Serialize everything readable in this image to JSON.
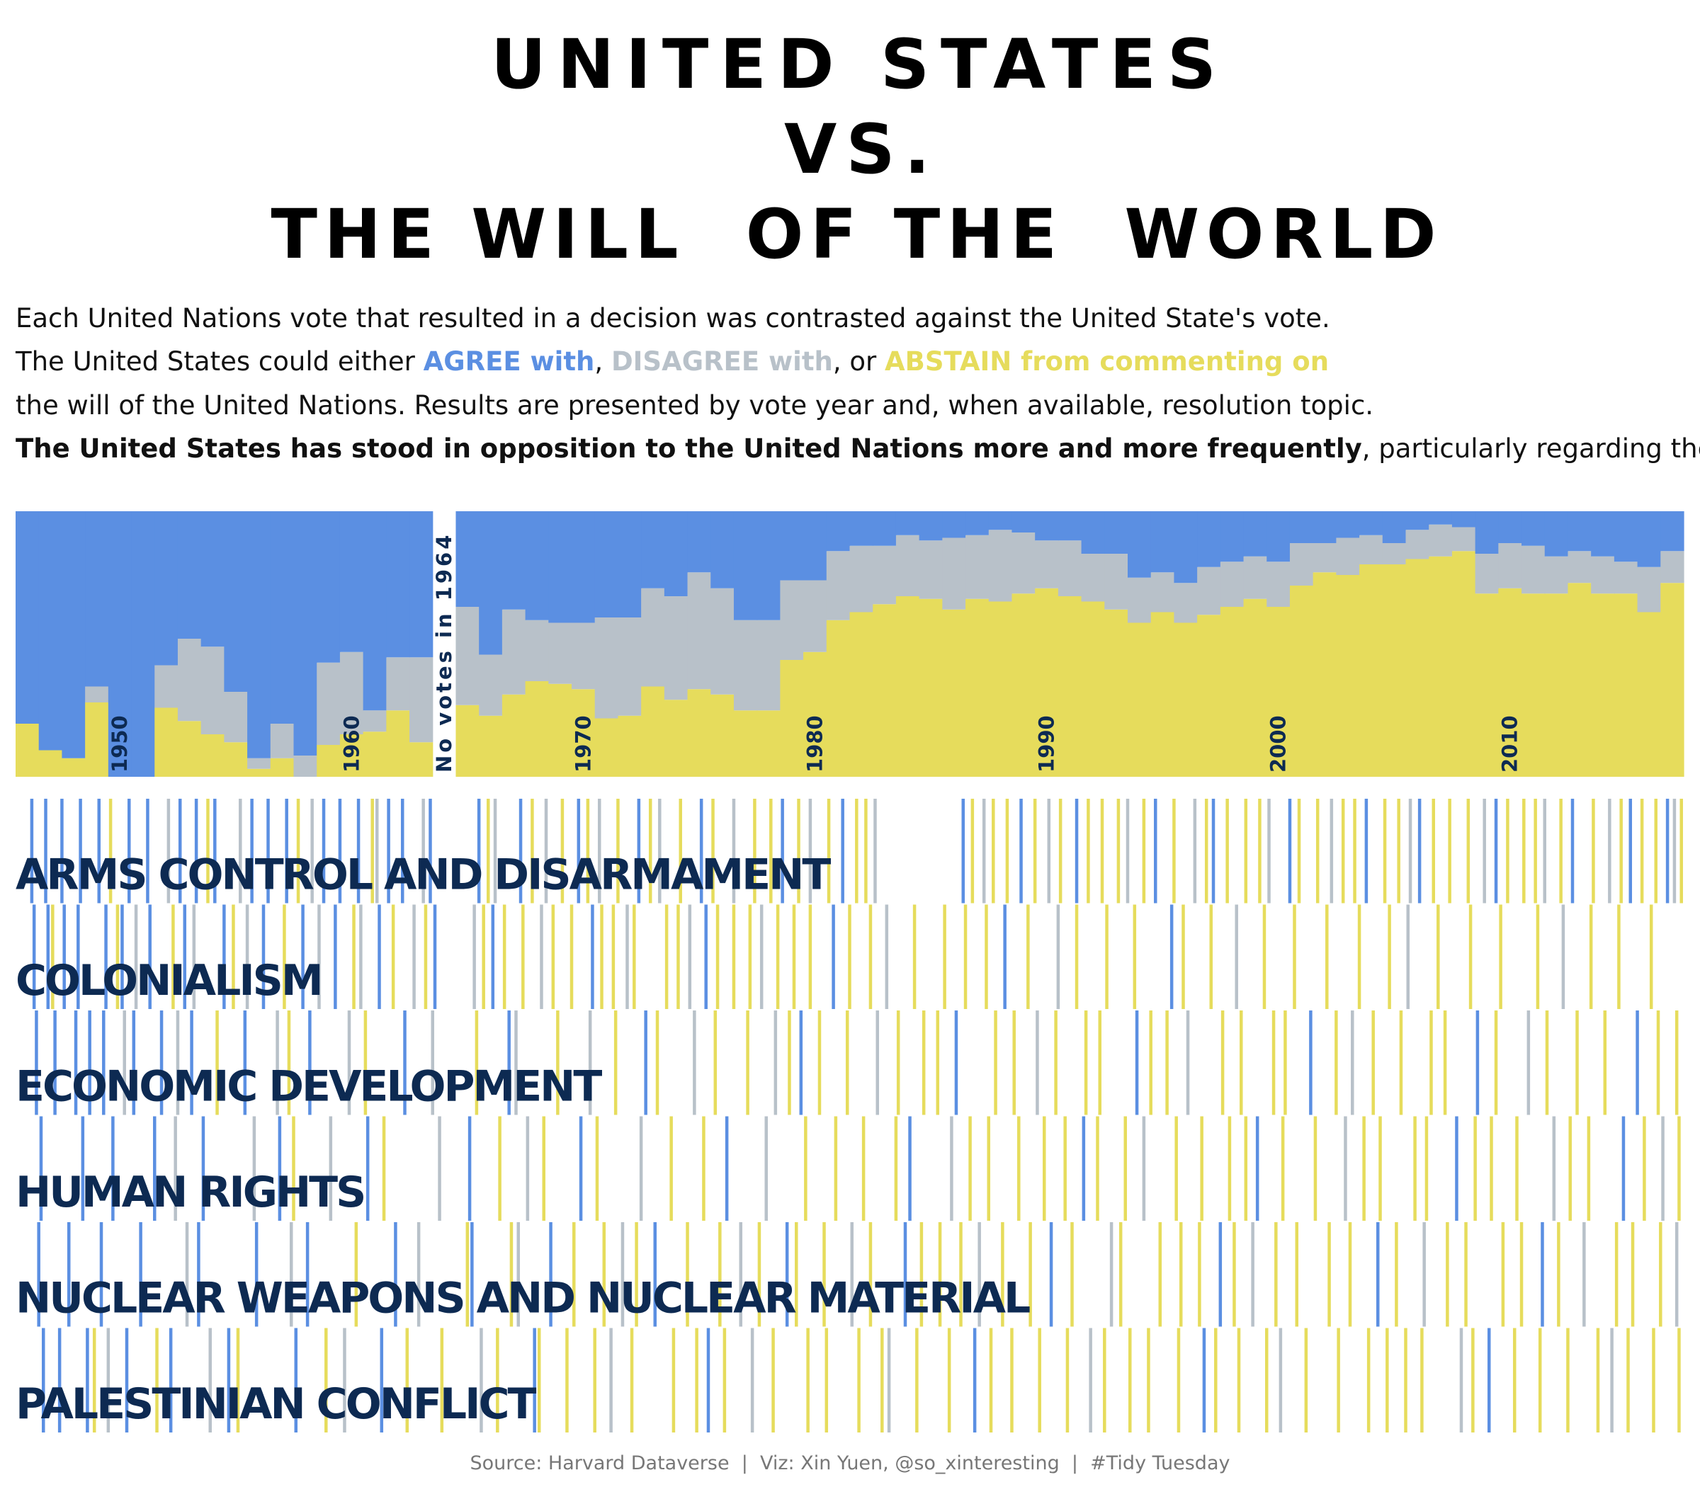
{
  "chart_data": {
    "type": "area",
    "title": [
      "UNITED STATES",
      "VS.",
      "THE WILL  OF THE  WORLD"
    ],
    "description": {
      "line1": "Each United Nations vote that resulted in a decision was contrasted against the United State's vote.",
      "line2_parts": [
        "The United States could either ",
        ", ",
        ", or "
      ],
      "line3": "the will of the United Nations. Results are presented by vote year and, when available, resolution topic.",
      "line4_bold": "The United States has stood in opposition to the United Nations more and more frequently",
      "line4_rest": ", particularly regarding the P"
    },
    "annotation": {
      "x": 1964,
      "text": "No votes in 1964"
    },
    "x": [
      1946,
      1947,
      1948,
      1949,
      1950,
      1951,
      1952,
      1953,
      1954,
      1955,
      1956,
      1957,
      1958,
      1959,
      1960,
      1961,
      1962,
      1963,
      1964,
      1965,
      1966,
      1967,
      1968,
      1969,
      1970,
      1971,
      1972,
      1973,
      1974,
      1975,
      1976,
      1977,
      1978,
      1979,
      1980,
      1981,
      1982,
      1983,
      1984,
      1985,
      1986,
      1987,
      1988,
      1989,
      1990,
      1991,
      1992,
      1993,
      1994,
      1995,
      1996,
      1997,
      1998,
      1999,
      2000,
      2001,
      2002,
      2003,
      2004,
      2005,
      2006,
      2007,
      2008,
      2009,
      2010,
      2011,
      2012,
      2013,
      2014,
      2015,
      2016,
      2017
    ],
    "xlim": [
      1945.5,
      2017.5
    ],
    "xticks": [
      1950,
      1960,
      1970,
      1980,
      1990,
      2000,
      2010
    ],
    "ylim": [
      0,
      100
    ],
    "series": [
      {
        "name": "AGREE with",
        "color": "#5b8fe2",
        "values": [
          80,
          90,
          93,
          66,
          100,
          100,
          58,
          48,
          51,
          68,
          93,
          80,
          92,
          57,
          53,
          75,
          55,
          55,
          null,
          36,
          54,
          37,
          41,
          42,
          42,
          40,
          40,
          29,
          32,
          23,
          29,
          41,
          41,
          26,
          26,
          15,
          13,
          13,
          9,
          11,
          10,
          9,
          7,
          8,
          11,
          11,
          16,
          16,
          25,
          23,
          27,
          21,
          19,
          17,
          19,
          12,
          12,
          10,
          9,
          12,
          7,
          5,
          6,
          16,
          12,
          13,
          17,
          15,
          17,
          19,
          21,
          15
        ]
      },
      {
        "name": "DISAGREE with",
        "color": "#b8c1c9",
        "values": [
          0,
          0,
          0,
          6,
          0,
          0,
          16,
          31,
          33,
          19,
          4,
          13,
          8,
          31,
          31,
          8,
          20,
          32,
          null,
          37,
          23,
          32,
          23,
          23,
          25,
          38,
          37,
          37,
          39,
          44,
          40,
          34,
          34,
          30,
          27,
          26,
          25,
          22,
          23,
          22,
          27,
          24,
          27,
          23,
          18,
          21,
          18,
          21,
          17,
          15,
          15,
          18,
          17,
          16,
          17,
          16,
          11,
          14,
          11,
          8,
          11,
          12,
          9,
          15,
          17,
          18,
          14,
          12,
          14,
          12,
          17,
          12
        ]
      },
      {
        "name": "ABSTAIN from commenting on",
        "color": "#e6dc5c",
        "values": [
          20,
          10,
          7,
          28,
          0,
          0,
          26,
          21,
          16,
          13,
          3,
          7,
          0,
          12,
          16,
          17,
          25,
          13,
          null,
          27,
          23,
          31,
          36,
          35,
          33,
          22,
          23,
          34,
          29,
          33,
          31,
          25,
          25,
          44,
          47,
          59,
          62,
          65,
          68,
          67,
          63,
          67,
          66,
          69,
          71,
          68,
          66,
          63,
          58,
          62,
          58,
          61,
          64,
          67,
          64,
          72,
          77,
          76,
          80,
          80,
          82,
          83,
          85,
          69,
          71,
          69,
          69,
          73,
          69,
          69,
          62,
          73
        ]
      }
    ],
    "strips": [
      {
        "label": "ARMS CONTROL AND DISARMAMENT",
        "votes": [
          [
            1946.2,
            1946.8,
            1947.5,
            1948.3,
            1949.1,
            1950.4,
            1951.2,
            1952.6,
            1953.3,
            1954.1,
            1955.7,
            1956.4,
            1957.2,
            1958.8,
            1959.5,
            1960.3,
            1961.6,
            1962.2,
            1963.4,
            1965.5,
            1967.3,
            1969.8,
            1972.4,
            1975.1,
            1978.6,
            1981.2,
            1986.4,
            1988.9,
            1991.3,
            1994.7,
            1997.2,
            2000.5,
            2003.8,
            2006.1,
            2009.4,
            2012.7,
            2015.2,
            2016.8
          ],
          [
            1952.1,
            1955.2,
            1958.3,
            1961.1,
            1963.1,
            1966.2,
            1968.4,
            1970.7,
            1973.3,
            1976.5,
            1979.8,
            1982.6,
            1987.3,
            1990.1,
            1993.5,
            1996.4,
            1999.6,
            2002.3,
            2005.7,
            2008.9,
            2011.5,
            2014.3,
            2017.1
          ],
          [
            1949.6,
            1953.8,
            1957.7,
            1960.9,
            1965.9,
            1967.8,
            1969.1,
            1970.2,
            1971.5,
            1972.9,
            1974.2,
            1975.6,
            1977.4,
            1978.1,
            1979.3,
            1980.6,
            1981.8,
            1982.2,
            1986.8,
            1987.7,
            1988.3,
            1989.5,
            1990.6,
            1991.8,
            1992.4,
            1993.1,
            1994.2,
            1995.5,
            1996.9,
            1997.8,
            1998.6,
            1999.2,
            2000.9,
            2001.7,
            2002.8,
            2003.3,
            2004.6,
            2005.2,
            2006.7,
            2007.4,
            2008.2,
            2009.9,
            2010.6,
            2011.1,
            2012.2,
            2013.6,
            2014.8,
            2015.7,
            2016.3,
            2017.4
          ]
        ]
      },
      {
        "label": "COLONIALISM",
        "votes": [
          [
            1946.3,
            1946.9,
            1947.6,
            1948.2,
            1949.4,
            1950.1,
            1951.3,
            1952.8,
            1954.5,
            1956.2,
            1957.9,
            1959.3,
            1961.2,
            1963.6,
            1966.1,
            1970.4,
            1975.3,
            1980.8,
            1988.2,
            1995.4
          ],
          [
            1950.7,
            1953.2,
            1955.5,
            1958.6,
            1960.4,
            1962.7,
            1965.3,
            1968.2,
            1971.9,
            1974.6,
            1977.7,
            1983.1,
            1990.5,
            1998.2,
            2005.6,
            2012.3
          ],
          [
            1947.1,
            1949.9,
            1952.3,
            1954.9,
            1957.1,
            1960.1,
            1961.8,
            1963.2,
            1965.7,
            1966.6,
            1967.4,
            1968.7,
            1969.5,
            1970.8,
            1971.3,
            1972.2,
            1973.6,
            1974.1,
            1975.8,
            1976.5,
            1977.2,
            1978.4,
            1979.1,
            1979.8,
            1981.5,
            1982.4,
            1984.3,
            1985.6,
            1986.5,
            1987.4,
            1989.2,
            1991.3,
            1992.6,
            1993.8,
            1995.9,
            1997.1,
            1999.4,
            2000.7,
            2002.1,
            2003.5,
            2004.8,
            2006.9,
            2008.3,
            2009.6,
            2011.2,
            2013.5,
            2014.7,
            2016.1
          ]
        ]
      },
      {
        "label": "ECONOMIC DEVELOPMENT",
        "votes": [
          [
            1946.4,
            1947.2,
            1948.1,
            1948.7,
            1949.3,
            1950.6,
            1951.8,
            1953.1,
            1955.4,
            1958.2,
            1962.3,
            1966.8,
            1972.7,
            1979.4,
            1986.1,
            1993.9,
            2001.4,
            2008.6,
            2015.5
          ],
          [
            1950.2,
            1952.5,
            1956.8,
            1959.9,
            1963.5,
            1967.1,
            1970.3,
            1974.8,
            1978.3,
            1982.7,
            1989.6,
            1996.1,
            2003.2,
            2010.8
          ],
          [
            1954.2,
            1957.3,
            1960.6,
            1965.4,
            1968.9,
            1971.4,
            1973.2,
            1975.7,
            1977.1,
            1978.9,
            1980.2,
            1981.4,
            1983.6,
            1984.7,
            1985.3,
            1987.8,
            1988.6,
            1990.4,
            1991.7,
            1992.3,
            1994.5,
            1995.2,
            1997.6,
            1998.4,
            1999.8,
            2000.3,
            2002.5,
            2004.1,
            2005.3,
            2006.6,
            2007.2,
            2009.4,
            2011.6,
            2012.9,
            2014.1,
            2016.4,
            2017.2
          ]
        ]
      },
      {
        "label": "HUMAN RIGHTS",
        "votes": [
          [
            1946.6,
            1948.4,
            1949.7,
            1951.5,
            1953.6,
            1956.9,
            1960.7,
            1965.1,
            1969.9,
            1976.2,
            1984.1,
            1991.6,
            1999.1,
            2007.7,
            2014.9
          ],
          [
            1952.4,
            1955.8,
            1959.1,
            1963.8,
            1967.6,
            1972.5,
            1977.9,
            1985.9,
            1994.2,
            2002.9,
            2011.9,
            2016.6
          ],
          [
            1957.5,
            1961.4,
            1966.4,
            1968.3,
            1970.6,
            1973.8,
            1975.2,
            1979.6,
            1980.9,
            1982.1,
            1983.5,
            1986.7,
            1987.5,
            1988.8,
            1989.9,
            1990.8,
            1992.2,
            1993.4,
            1995.6,
            1996.7,
            1997.9,
            1998.6,
            2000.2,
            2001.6,
            2003.7,
            2004.4,
            2005.9,
            2006.4,
            2008.5,
            2009.2,
            2010.3,
            2012.6,
            2013.4,
            2015.8,
            2017.3
          ]
        ]
      },
      {
        "label": "NUCLEAR WEAPONS AND NUCLEAR MATERIAL",
        "votes": [
          [
            1946.5,
            1947.8,
            1949.2,
            1950.9,
            1953.4,
            1955.9,
            1958.1,
            1961.9,
            1965.2,
            1968.6,
            1973.1,
            1978.8,
            1983.9,
            1990.2,
            1997.5,
            2004.3,
            2011.4
          ],
          [
            1952.9,
            1957.4,
            1962.9,
            1967.2,
            1971.7,
            1976.8,
            1981.6,
            1987.1,
            1992.8,
            1998.9,
            2006.3,
            2013.2,
            2017.2
          ],
          [
            1960.2,
            1965.0,
            1966.9,
            1969.6,
            1970.9,
            1972.3,
            1974.5,
            1975.9,
            1977.6,
            1979.2,
            1980.4,
            1982.4,
            1984.6,
            1985.4,
            1986.3,
            1988.1,
            1989.3,
            1991.1,
            1993.2,
            1994.9,
            1995.8,
            1996.6,
            1998.1,
            1999.9,
            2000.8,
            2002.2,
            2003.1,
            2005.1,
            2007.3,
            2008.1,
            2009.7,
            2010.5,
            2012.1,
            2014.6,
            2015.3,
            2016.5
          ]
        ]
      },
      {
        "label": "PALESTINIAN CONFLICT",
        "votes": [
          [
            1946.7,
            1947.4,
            1948.6,
            1950.3,
            1952.2,
            1954.7,
            1957.6,
            1961.3,
            1967.9,
            1975.4,
            1986.9,
            1996.8,
            2009.1
          ],
          [
            1949.5,
            1953.9,
            1959.7,
            1965.6,
            1971.2,
            1977.3,
            1983.2,
            1991.9,
            2000.1,
            2007.9,
            2014.4
          ],
          [
            1948.9,
            1951.6,
            1955.1,
            1958.9,
            1962.4,
            1963.9,
            1966.3,
            1968.1,
            1969.3,
            1970.5,
            1972.1,
            1973.9,
            1974.9,
            1976.1,
            1978.2,
            1979.7,
            1980.5,
            1981.9,
            1982.9,
            1984.4,
            1985.8,
            1987.6,
            1988.5,
            1989.7,
            1990.9,
            1992.5,
            1993.6,
            1994.4,
            1995.7,
            1997.3,
            1998.3,
            1999.5,
            2001.2,
            2002.6,
            2003.9,
            2004.7,
            2005.5,
            2006.2,
            2008.4,
            2010.2,
            2011.3,
            2012.5,
            2013.8,
            2015.1,
            2016.2,
            2017.3
          ]
        ]
      }
    ],
    "source": "Source: Harvard Dataverse  |  Viz: Xin Yuen, @so_xinteresting  |  #Tidy Tuesday"
  }
}
